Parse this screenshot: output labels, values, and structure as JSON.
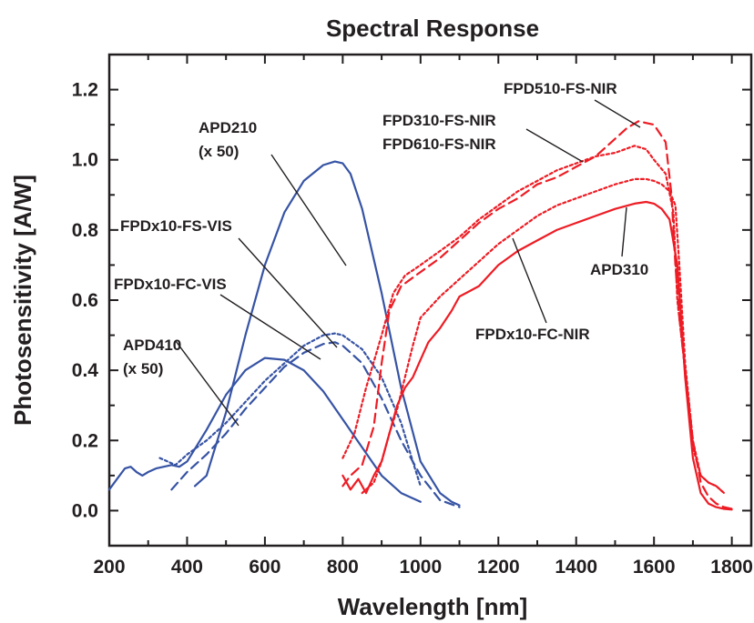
{
  "chart_data": {
    "type": "line",
    "title": "Spectral Response",
    "xlabel": "Wavelength [nm]",
    "ylabel": "Photosensitivity [A/W]",
    "xlim": [
      200,
      1850
    ],
    "ylim": [
      -0.1,
      1.3
    ],
    "xticks": [
      "200",
      "400",
      "600",
      "800",
      "1000",
      "1200",
      "1400",
      "1600",
      "1800"
    ],
    "yticks": [
      "0.0",
      "0.2",
      "0.4",
      "0.6",
      "0.8",
      "1.0",
      "1.2"
    ],
    "grid": false,
    "colors": {
      "blue": "#3653a4",
      "red": "#ed1c24",
      "text": "#231f20"
    },
    "series": [
      {
        "name": "APD210 (x 50)",
        "color": "#3653a4",
        "dash": "solid",
        "x": [
          420,
          450,
          500,
          550,
          600,
          650,
          700,
          750,
          780,
          800,
          820,
          850,
          900,
          950,
          1000,
          1050,
          1080,
          1100
        ],
        "y": [
          0.07,
          0.1,
          0.28,
          0.5,
          0.7,
          0.85,
          0.94,
          0.985,
          0.995,
          0.99,
          0.96,
          0.86,
          0.62,
          0.35,
          0.14,
          0.05,
          0.025,
          0.015
        ]
      },
      {
        "name": "APD410 (x 50)",
        "color": "#3653a4",
        "dash": "solid",
        "x": [
          200,
          220,
          240,
          255,
          270,
          285,
          300,
          320,
          340,
          360,
          380,
          400,
          450,
          500,
          550,
          600,
          650,
          700,
          750,
          800,
          850,
          900,
          950,
          1000
        ],
        "y": [
          0.06,
          0.09,
          0.12,
          0.125,
          0.11,
          0.1,
          0.11,
          0.12,
          0.125,
          0.13,
          0.125,
          0.14,
          0.23,
          0.33,
          0.4,
          0.435,
          0.43,
          0.4,
          0.34,
          0.26,
          0.18,
          0.1,
          0.05,
          0.025
        ]
      },
      {
        "name": "FPDx10-FS-VIS",
        "color": "#3653a4",
        "dash": "dotted",
        "x": [
          330,
          350,
          370,
          400,
          450,
          500,
          550,
          600,
          650,
          700,
          750,
          780,
          800,
          850,
          900,
          950,
          980,
          1000
        ],
        "y": [
          0.15,
          0.14,
          0.13,
          0.16,
          0.2,
          0.25,
          0.31,
          0.37,
          0.42,
          0.47,
          0.5,
          0.505,
          0.5,
          0.46,
          0.38,
          0.25,
          0.14,
          0.07
        ]
      },
      {
        "name": "FPDx10-FC-VIS",
        "color": "#3653a4",
        "dash": "dashed",
        "x": [
          360,
          400,
          450,
          500,
          550,
          600,
          650,
          700,
          750,
          780,
          800,
          850,
          900,
          950,
          1000,
          1050,
          1100
        ],
        "y": [
          0.06,
          0.11,
          0.16,
          0.22,
          0.29,
          0.35,
          0.41,
          0.45,
          0.475,
          0.48,
          0.47,
          0.42,
          0.32,
          0.2,
          0.1,
          0.03,
          0.01
        ]
      },
      {
        "name": "FPD510-FS-NIR",
        "color": "#ed1c24",
        "dash": "dashed",
        "x": [
          800,
          820,
          850,
          880,
          900,
          920,
          950,
          1000,
          1050,
          1100,
          1150,
          1200,
          1250,
          1300,
          1350,
          1400,
          1450,
          1500,
          1530,
          1560,
          1600,
          1630,
          1645,
          1655,
          1665,
          1680,
          1700,
          1720,
          1740,
          1760,
          1780,
          1800
        ],
        "y": [
          0.07,
          0.1,
          0.13,
          0.24,
          0.42,
          0.57,
          0.64,
          0.68,
          0.72,
          0.77,
          0.82,
          0.86,
          0.89,
          0.93,
          0.95,
          0.98,
          1.01,
          1.06,
          1.09,
          1.11,
          1.1,
          1.05,
          0.9,
          0.7,
          0.55,
          0.4,
          0.2,
          0.08,
          0.04,
          0.02,
          0.01,
          0.005
        ]
      },
      {
        "name": "FPD310-FS-NIR / FPD610-FS-NIR",
        "color": "#ed1c24",
        "dash": "dotted",
        "x": [
          800,
          830,
          860,
          900,
          930,
          960,
          1000,
          1050,
          1100,
          1150,
          1200,
          1250,
          1300,
          1350,
          1400,
          1450,
          1500,
          1550,
          1580,
          1600,
          1630,
          1650,
          1660,
          1680,
          1700,
          1720,
          1740,
          1760,
          1780
        ],
        "y": [
          0.15,
          0.22,
          0.35,
          0.5,
          0.62,
          0.67,
          0.7,
          0.74,
          0.78,
          0.83,
          0.87,
          0.91,
          0.94,
          0.97,
          0.99,
          1.01,
          1.02,
          1.04,
          1.03,
          1.0,
          0.96,
          0.85,
          0.6,
          0.4,
          0.18,
          0.1,
          0.08,
          0.07,
          0.05
        ]
      },
      {
        "name": "FPDx10-FC-NIR",
        "color": "#ed1c24",
        "dash": "dotted",
        "x": [
          850,
          880,
          900,
          920,
          940,
          960,
          980,
          1000,
          1050,
          1100,
          1150,
          1200,
          1250,
          1300,
          1350,
          1400,
          1450,
          1500,
          1550,
          1580,
          1600,
          1620,
          1640,
          1655,
          1665,
          1680,
          1700,
          1720,
          1740,
          1760,
          1780
        ],
        "y": [
          0.05,
          0.08,
          0.14,
          0.22,
          0.29,
          0.38,
          0.47,
          0.55,
          0.61,
          0.66,
          0.71,
          0.76,
          0.8,
          0.84,
          0.87,
          0.89,
          0.91,
          0.93,
          0.945,
          0.945,
          0.94,
          0.93,
          0.91,
          0.87,
          0.7,
          0.42,
          0.2,
          0.1,
          0.08,
          0.07,
          0.05
        ]
      },
      {
        "name": "APD310",
        "color": "#ed1c24",
        "dash": "solid",
        "x": [
          800,
          820,
          840,
          860,
          880,
          900,
          920,
          940,
          960,
          980,
          1000,
          1020,
          1050,
          1080,
          1100,
          1150,
          1200,
          1250,
          1300,
          1350,
          1400,
          1450,
          1500,
          1550,
          1580,
          1600,
          1620,
          1640,
          1660,
          1680,
          1700,
          1720,
          1740,
          1760,
          1780,
          1800
        ],
        "y": [
          0.1,
          0.06,
          0.09,
          0.05,
          0.1,
          0.14,
          0.22,
          0.3,
          0.35,
          0.38,
          0.43,
          0.48,
          0.52,
          0.57,
          0.61,
          0.64,
          0.7,
          0.74,
          0.77,
          0.8,
          0.82,
          0.84,
          0.86,
          0.875,
          0.88,
          0.875,
          0.86,
          0.83,
          0.7,
          0.38,
          0.15,
          0.05,
          0.02,
          0.01,
          0.005,
          0.003
        ]
      }
    ],
    "annotations": [
      {
        "lines": [
          "APD210",
          "(x 50)"
        ]
      },
      {
        "lines": [
          "FPDx10-FS-VIS"
        ]
      },
      {
        "lines": [
          "FPDx10-FC-VIS"
        ]
      },
      {
        "lines": [
          "APD410",
          "(x 50)"
        ]
      },
      {
        "lines": [
          "FPD510-FS-NIR"
        ]
      },
      {
        "lines": [
          "FPD310-FS-NIR",
          "FPD610-FS-NIR"
        ]
      },
      {
        "lines": [
          "APD310"
        ]
      },
      {
        "lines": [
          "FPDx10-FC-NIR"
        ]
      }
    ]
  }
}
